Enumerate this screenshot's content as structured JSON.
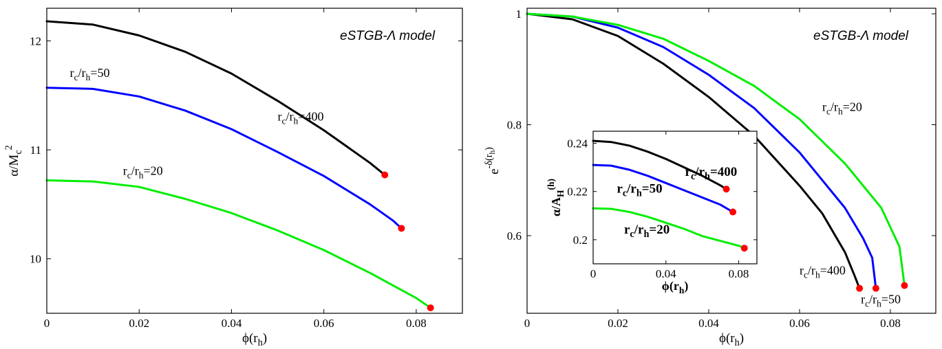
{
  "chart_data": [
    {
      "id": "left",
      "type": "line",
      "model_text": "eSTGB-Λ model",
      "xlabel": {
        "base": "ϕ(r",
        "sub": "h",
        "close": ")"
      },
      "ylabel": {
        "base": "α/M",
        "sub": "c",
        "sup": "2"
      },
      "xlim": [
        0,
        0.09
      ],
      "ylim": [
        9.5,
        12.3
      ],
      "xticks": [
        {
          "v": 0,
          "label": "0"
        },
        {
          "v": 0.02,
          "label": "0.02"
        },
        {
          "v": 0.04,
          "label": "0.04"
        },
        {
          "v": 0.06,
          "label": "0.06"
        },
        {
          "v": 0.08,
          "label": "0.08"
        }
      ],
      "yticks": [
        {
          "v": 10,
          "label": "10"
        },
        {
          "v": 11,
          "label": "11"
        },
        {
          "v": 12,
          "label": "12"
        }
      ],
      "series": [
        {
          "name": "r_c/r_h=400",
          "color": "#000000",
          "x": [
            0,
            0.01,
            0.02,
            0.03,
            0.04,
            0.05,
            0.06,
            0.07,
            0.0732
          ],
          "y": [
            12.18,
            12.15,
            12.05,
            11.9,
            11.7,
            11.45,
            11.18,
            10.88,
            10.77
          ]
        },
        {
          "name": "r_c/r_h=50",
          "color": "#0000ff",
          "x": [
            0,
            0.01,
            0.02,
            0.03,
            0.04,
            0.05,
            0.06,
            0.07,
            0.075,
            0.0768
          ],
          "y": [
            11.57,
            11.56,
            11.49,
            11.36,
            11.19,
            10.98,
            10.76,
            10.5,
            10.35,
            10.28
          ]
        },
        {
          "name": "r_c/r_h=20",
          "color": "#00ee00",
          "x": [
            0,
            0.01,
            0.02,
            0.03,
            0.04,
            0.05,
            0.06,
            0.07,
            0.08,
            0.0831
          ],
          "y": [
            10.72,
            10.71,
            10.66,
            10.55,
            10.42,
            10.26,
            10.08,
            9.87,
            9.64,
            9.55
          ]
        }
      ],
      "endpoints": [
        {
          "x": 0.0732,
          "y": 10.77
        },
        {
          "x": 0.0768,
          "y": 10.28
        },
        {
          "x": 0.0831,
          "y": 9.55
        }
      ],
      "annotations": [
        {
          "base": "r",
          "sub1": "c",
          "mid": "/r",
          "sub2": "h",
          "tail": "=50",
          "x": 0.005,
          "y": 11.67
        },
        {
          "base": "r",
          "sub1": "c",
          "mid": "/r",
          "sub2": "h",
          "tail": "=400",
          "x": 0.05,
          "y": 11.27
        },
        {
          "base": "r",
          "sub1": "c",
          "mid": "/r",
          "sub2": "h",
          "tail": "=20",
          "x": 0.0165,
          "y": 10.77
        }
      ]
    },
    {
      "id": "right",
      "type": "line",
      "model_text": "eSTGB-Λ model",
      "xlabel": {
        "base": "ϕ(r",
        "sub": "h",
        "close": ")"
      },
      "ylabel": {
        "base": "e",
        "sup": "-δ(r",
        "supsub": "h",
        "supclose": ")"
      },
      "xlim": [
        0,
        0.09
      ],
      "ylim": [
        0.46,
        1.01
      ],
      "xticks": [
        {
          "v": 0,
          "label": "0"
        },
        {
          "v": 0.02,
          "label": "0.02"
        },
        {
          "v": 0.04,
          "label": "0.04"
        },
        {
          "v": 0.06,
          "label": "0.06"
        },
        {
          "v": 0.08,
          "label": "0.08"
        }
      ],
      "yticks": [
        {
          "v": 0.6,
          "label": "0.6"
        },
        {
          "v": 0.8,
          "label": "0.8"
        },
        {
          "v": 1,
          "label": "1"
        }
      ],
      "series": [
        {
          "name": "r_c/r_h=400",
          "color": "#000000",
          "x": [
            0,
            0.01,
            0.02,
            0.03,
            0.04,
            0.05,
            0.06,
            0.065,
            0.07,
            0.072,
            0.0732
          ],
          "y": [
            1.0,
            0.99,
            0.96,
            0.91,
            0.85,
            0.78,
            0.69,
            0.64,
            0.57,
            0.53,
            0.505
          ]
        },
        {
          "name": "r_c/r_h=50",
          "color": "#0000ff",
          "x": [
            0,
            0.01,
            0.02,
            0.03,
            0.04,
            0.05,
            0.06,
            0.07,
            0.074,
            0.076,
            0.0768
          ],
          "y": [
            1.0,
            0.995,
            0.975,
            0.94,
            0.89,
            0.83,
            0.75,
            0.65,
            0.595,
            0.56,
            0.505
          ]
        },
        {
          "name": "r_c/r_h=20",
          "color": "#00ee00",
          "x": [
            0,
            0.01,
            0.02,
            0.03,
            0.04,
            0.05,
            0.06,
            0.07,
            0.078,
            0.082,
            0.0831
          ],
          "y": [
            1.0,
            0.995,
            0.98,
            0.955,
            0.915,
            0.87,
            0.81,
            0.73,
            0.65,
            0.58,
            0.51
          ]
        }
      ],
      "endpoints": [
        {
          "x": 0.0732,
          "y": 0.505
        },
        {
          "x": 0.0768,
          "y": 0.505
        },
        {
          "x": 0.0831,
          "y": 0.51
        }
      ],
      "annotations": [
        {
          "base": "r",
          "sub1": "c",
          "mid": "/r",
          "sub2": "h",
          "tail": "=20",
          "x": 0.065,
          "y": 0.825
        },
        {
          "base": "r",
          "sub1": "c",
          "mid": "/r",
          "sub2": "h",
          "tail": "=400",
          "x": 0.06,
          "y": 0.53
        },
        {
          "base": "r",
          "sub1": "c",
          "mid": "/r",
          "sub2": "h",
          "tail": "=50",
          "x": 0.0735,
          "y": 0.478
        }
      ]
    },
    {
      "id": "inset",
      "type": "line",
      "xlabel": {
        "base": "ϕ(r",
        "sub": "h",
        "close": ")"
      },
      "ylabel": {
        "base": "α/A",
        "sub": "H",
        "sup": "(h)"
      },
      "xlim": [
        0,
        0.09
      ],
      "ylim": [
        0.19,
        0.245
      ],
      "xticks": [
        {
          "v": 0,
          "label": "0"
        },
        {
          "v": 0.04,
          "label": "0.04"
        },
        {
          "v": 0.08,
          "label": "0.08"
        }
      ],
      "yticks": [
        {
          "v": 0.2,
          "label": "0.2"
        },
        {
          "v": 0.22,
          "label": "0.22"
        },
        {
          "v": 0.24,
          "label": "0.24"
        }
      ],
      "series": [
        {
          "name": "r_c/r_h=400",
          "color": "#000000",
          "x": [
            0,
            0.01,
            0.02,
            0.03,
            0.04,
            0.05,
            0.06,
            0.07,
            0.0732
          ],
          "y": [
            0.241,
            0.2405,
            0.239,
            0.2365,
            0.2335,
            0.23,
            0.2265,
            0.2225,
            0.221
          ]
        },
        {
          "name": "r_c/r_h=50",
          "color": "#0000ff",
          "x": [
            0,
            0.01,
            0.02,
            0.03,
            0.04,
            0.05,
            0.06,
            0.07,
            0.0768
          ],
          "y": [
            0.231,
            0.2307,
            0.229,
            0.2265,
            0.2235,
            0.2205,
            0.2175,
            0.2145,
            0.2115
          ]
        },
        {
          "name": "r_c/r_h=20",
          "color": "#00ee00",
          "x": [
            0,
            0.01,
            0.02,
            0.03,
            0.04,
            0.05,
            0.06,
            0.07,
            0.08,
            0.0831
          ],
          "y": [
            0.213,
            0.2128,
            0.2115,
            0.2095,
            0.207,
            0.2045,
            0.2015,
            0.1995,
            0.1975,
            0.1965
          ]
        }
      ],
      "endpoints": [
        {
          "x": 0.0732,
          "y": 0.221
        },
        {
          "x": 0.0768,
          "y": 0.2115
        },
        {
          "x": 0.0831,
          "y": 0.1965
        }
      ],
      "annotations": [
        {
          "base": "r",
          "sub1": "c",
          "mid": "/r",
          "sub2": "h",
          "tail": "=400",
          "x": 0.0505,
          "y": 0.2265
        },
        {
          "base": "r",
          "sub1": "c",
          "mid": "/r",
          "sub2": "h",
          "tail": "=50",
          "x": 0.013,
          "y": 0.2195
        },
        {
          "base": "r",
          "sub1": "c",
          "mid": "/r",
          "sub2": "h",
          "tail": "=20",
          "x": 0.017,
          "y": 0.2025
        }
      ]
    }
  ]
}
